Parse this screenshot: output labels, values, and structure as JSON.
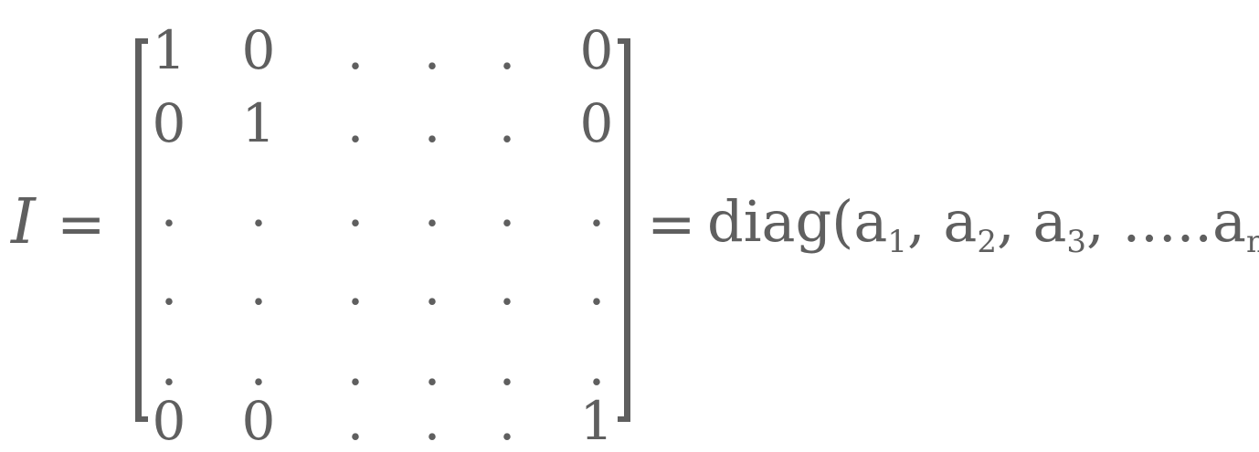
{
  "equation": {
    "lhs": "I",
    "equals": "=",
    "matrix": {
      "rows": [
        [
          "1",
          "0",
          ".",
          ".",
          ".",
          "0"
        ],
        [
          "0",
          "1",
          ".",
          ".",
          ".",
          "0"
        ],
        [
          ".",
          ".",
          ".",
          ".",
          ".",
          "."
        ],
        [
          ".",
          ".",
          ".",
          ".",
          ".",
          "."
        ],
        [
          ".",
          ".",
          ".",
          ".",
          ".",
          "."
        ],
        [
          "0",
          "0",
          ".",
          ".",
          ".",
          "1"
        ]
      ]
    },
    "rhs": {
      "function": "diag",
      "open_paren": "(",
      "close_paren": ")",
      "args": [
        {
          "base": "a",
          "sub": "1"
        },
        {
          "base": "a",
          "sub": "2"
        },
        {
          "base": "a",
          "sub": "3"
        },
        {
          "base": "a",
          "sub": "n"
        }
      ],
      "separator": ", ",
      "ellipsis": "....."
    }
  }
}
